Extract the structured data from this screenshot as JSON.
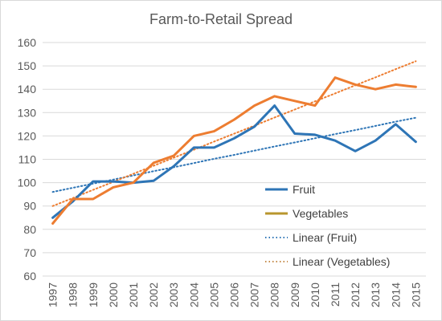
{
  "chart_data": {
    "type": "line",
    "title": "Farm-to-Retail Spread",
    "xlabel": "",
    "ylabel": "",
    "ylim": [
      60,
      160
    ],
    "yticks": [
      60,
      70,
      80,
      90,
      100,
      110,
      120,
      130,
      140,
      150,
      160
    ],
    "categories": [
      "1997",
      "1998",
      "1999",
      "2000",
      "2001",
      "2002",
      "2003",
      "2004",
      "2005",
      "2006",
      "2007",
      "2008",
      "2009",
      "2010",
      "2011",
      "2012",
      "2013",
      "2014",
      "2015"
    ],
    "grid": true,
    "legend_position": "right",
    "series": [
      {
        "name": "Fruit",
        "color": "#2e75b6",
        "style": "solid",
        "values": [
          85,
          92,
          100.5,
          100.5,
          100,
          100.8,
          107,
          115,
          115,
          119,
          124,
          133,
          121,
          120.5,
          118,
          113.5,
          118,
          125,
          117.5
        ]
      },
      {
        "name": "Vegetables",
        "color": "#ed7d31",
        "style": "solid",
        "values": [
          82.5,
          93,
          93,
          98,
          100,
          108.5,
          111.5,
          120,
          122,
          127,
          133,
          137,
          135,
          133,
          145,
          142,
          140,
          142,
          141
        ]
      },
      {
        "name": "Linear (Fruit)",
        "color": "#2e75b6",
        "style": "dotted",
        "values": [
          96,
          97.8,
          99.6,
          101.3,
          103.1,
          104.9,
          106.6,
          108.4,
          110.2,
          111.9,
          113.7,
          115.5,
          117.2,
          119,
          120.8,
          122.5,
          124.3,
          126.1,
          127.8
        ]
      },
      {
        "name": "Linear (Vegetables)",
        "color": "#ed7d31",
        "style": "dotted",
        "values": [
          90,
          93.4,
          96.9,
          100.3,
          103.8,
          107.2,
          110.7,
          114.1,
          117.6,
          121,
          124.4,
          127.9,
          131.3,
          134.8,
          138.2,
          141.7,
          145.1,
          148.6,
          152
        ]
      }
    ],
    "legend_swatch_colors": [
      "#2e75b6",
      "#b8962e",
      "#2e75b6",
      "#c58b4a"
    ]
  }
}
